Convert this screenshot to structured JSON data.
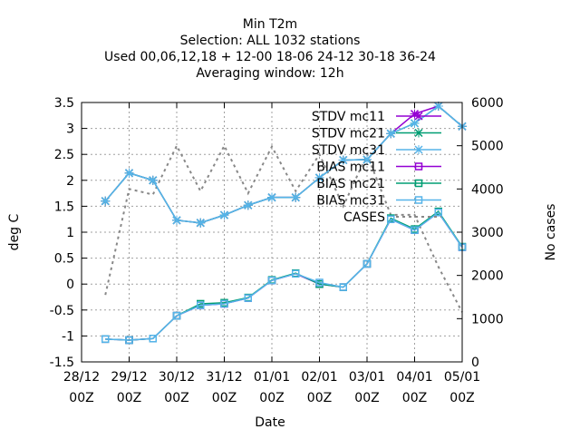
{
  "chart_data": {
    "type": "line",
    "title_lines": [
      "Min T2m",
      "Selection: ALL    1032 stations",
      "Used  00,06,12,18 + 12-00 18-06 24-12 30-18 36-24",
      "Averaging window: 12h"
    ],
    "xlabel": "Date",
    "ylabel": "deg C",
    "y2label": "No cases",
    "x_ticks": [
      {
        "x": 0,
        "line1": "28/12",
        "line2": "00Z"
      },
      {
        "x": 24,
        "line1": "29/12",
        "line2": "00Z"
      },
      {
        "x": 48,
        "line1": "30/12",
        "line2": "00Z"
      },
      {
        "x": 72,
        "line1": "31/12",
        "line2": "00Z"
      },
      {
        "x": 96,
        "line1": "01/01",
        "line2": "00Z"
      },
      {
        "x": 120,
        "line1": "02/01",
        "line2": "00Z"
      },
      {
        "x": 144,
        "line1": "03/01",
        "line2": "00Z"
      },
      {
        "x": 168,
        "line1": "04/01",
        "line2": "00Z"
      },
      {
        "x": 192,
        "line1": "05/01",
        "line2": "00Z"
      }
    ],
    "xlim": [
      0,
      192
    ],
    "ylim": [
      -1.5,
      3.5
    ],
    "y_ticks": [
      "-1.5",
      "-1",
      "-0.5",
      "0",
      "0.5",
      "1",
      "1.5",
      "2",
      "2.5",
      "3",
      "3.5"
    ],
    "y2lim": [
      0,
      6000
    ],
    "y2_ticks": [
      "0",
      "1000",
      "2000",
      "3000",
      "4000",
      "5000",
      "6000"
    ],
    "grid": true,
    "legend_position": "top-right",
    "x": [
      12,
      24,
      36,
      48,
      60,
      72,
      84,
      96,
      108,
      120,
      132,
      144,
      156,
      168,
      180,
      192
    ],
    "series": [
      {
        "name": "STDV mc11",
        "axis": "y",
        "color": "#9400d3",
        "marker": "x",
        "values": [
          1.6,
          2.14,
          2.0,
          1.23,
          1.18,
          1.33,
          1.52,
          1.67,
          1.67,
          2.05,
          2.39,
          2.4,
          2.9,
          3.28,
          3.43,
          3.04
        ]
      },
      {
        "name": "STDV mc21",
        "axis": "y",
        "color": "#009e73",
        "marker": "x",
        "values": [
          1.6,
          2.14,
          2.0,
          1.23,
          1.18,
          1.33,
          1.52,
          1.67,
          1.67,
          2.05,
          2.39,
          2.4,
          2.9,
          3.1,
          3.43,
          3.04
        ]
      },
      {
        "name": "STDV mc31",
        "axis": "y",
        "color": "#56b4e9",
        "marker": "x",
        "values": [
          1.6,
          2.14,
          2.0,
          1.23,
          1.18,
          1.33,
          1.52,
          1.67,
          1.67,
          2.05,
          2.39,
          2.4,
          2.9,
          3.1,
          3.43,
          3.04
        ]
      },
      {
        "name": "BIAS mc11",
        "axis": "y",
        "color": "#9400d3",
        "marker": "square",
        "values": [
          -1.06,
          -1.08,
          -1.05,
          -0.61,
          -0.41,
          -0.38,
          -0.27,
          0.07,
          0.2,
          0.0,
          -0.06,
          0.39,
          1.25,
          1.04,
          1.38,
          0.71
        ]
      },
      {
        "name": "BIAS mc21",
        "axis": "y",
        "color": "#009e73",
        "marker": "square",
        "values": [
          -1.06,
          -1.08,
          -1.05,
          -0.61,
          -0.38,
          -0.36,
          -0.26,
          0.08,
          0.21,
          0.0,
          -0.06,
          0.39,
          1.27,
          1.06,
          1.4,
          0.72
        ]
      },
      {
        "name": "BIAS mc31",
        "axis": "y",
        "color": "#56b4e9",
        "marker": "square",
        "values": [
          -1.06,
          -1.08,
          -1.05,
          -0.61,
          -0.41,
          -0.38,
          -0.27,
          0.07,
          0.2,
          0.03,
          -0.06,
          0.39,
          1.25,
          1.04,
          1.38,
          0.71
        ]
      },
      {
        "name": "CASES",
        "axis": "y2",
        "color": "#888888",
        "marker": "none",
        "dashed": true,
        "values": [
          1550,
          4000,
          3870,
          5000,
          3950,
          5000,
          3900,
          4980,
          3950,
          4800,
          3600,
          4800,
          3400,
          3400,
          2200,
          1150
        ]
      }
    ]
  }
}
